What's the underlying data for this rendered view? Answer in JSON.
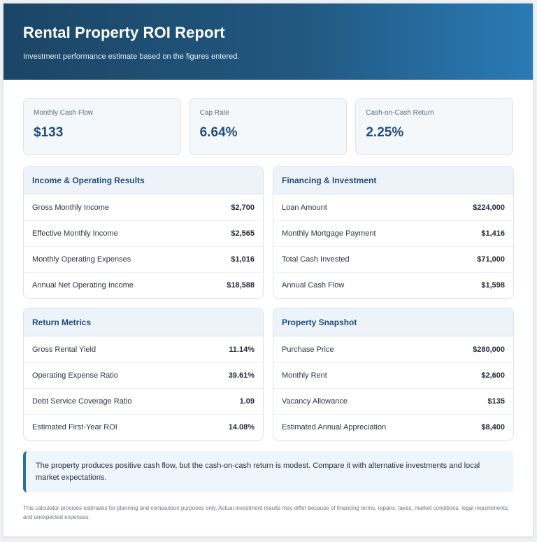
{
  "header": {
    "title": "Rental Property ROI Report",
    "subtitle": "Investment performance estimate based on the figures entered."
  },
  "metrics": [
    {
      "label": "Monthly Cash Flow",
      "value": "$133"
    },
    {
      "label": "Cap Rate",
      "value": "6.64%"
    },
    {
      "label": "Cash-on-Cash Return",
      "value": "2.25%"
    }
  ],
  "panels": {
    "income": {
      "title": "Income & Operating Results",
      "rows": [
        {
          "label": "Gross Monthly Income",
          "value": "$2,700"
        },
        {
          "label": "Effective Monthly Income",
          "value": "$2,565"
        },
        {
          "label": "Monthly Operating Expenses",
          "value": "$1,016"
        },
        {
          "label": "Annual Net Operating Income",
          "value": "$18,588"
        }
      ]
    },
    "financing": {
      "title": "Financing & Investment",
      "rows": [
        {
          "label": "Loan Amount",
          "value": "$224,000"
        },
        {
          "label": "Monthly Mortgage Payment",
          "value": "$1,416"
        },
        {
          "label": "Total Cash Invested",
          "value": "$71,000"
        },
        {
          "label": "Annual Cash Flow",
          "value": "$1,598"
        }
      ]
    },
    "returns": {
      "title": "Return Metrics",
      "rows": [
        {
          "label": "Gross Rental Yield",
          "value": "11.14%"
        },
        {
          "label": "Operating Expense Ratio",
          "value": "39.61%"
        },
        {
          "label": "Debt Service Coverage Ratio",
          "value": "1.09"
        },
        {
          "label": "Estimated First-Year ROI",
          "value": "14.08%"
        }
      ]
    },
    "property": {
      "title": "Property Snapshot",
      "rows": [
        {
          "label": "Purchase Price",
          "value": "$280,000"
        },
        {
          "label": "Monthly Rent",
          "value": "$2,600"
        },
        {
          "label": "Vacancy Allowance",
          "value": "$135"
        },
        {
          "label": "Estimated Annual Appreciation",
          "value": "$8,400"
        }
      ]
    }
  },
  "note": "The property produces positive cash flow, but the cash-on-cash return is modest. Compare it with alternative investments and local market expectations.",
  "disclaimer": "This calculator provides estimates for planning and comparison purposes only. Actual investment results may differ because of financing terms, repairs, taxes, market conditions, legal requirements, and unexpected expenses.",
  "colors": {
    "header_start": "#1b4566",
    "header_end": "#2a7ab5",
    "accent": "#1e4d78",
    "note_border": "#2a6ea6"
  }
}
